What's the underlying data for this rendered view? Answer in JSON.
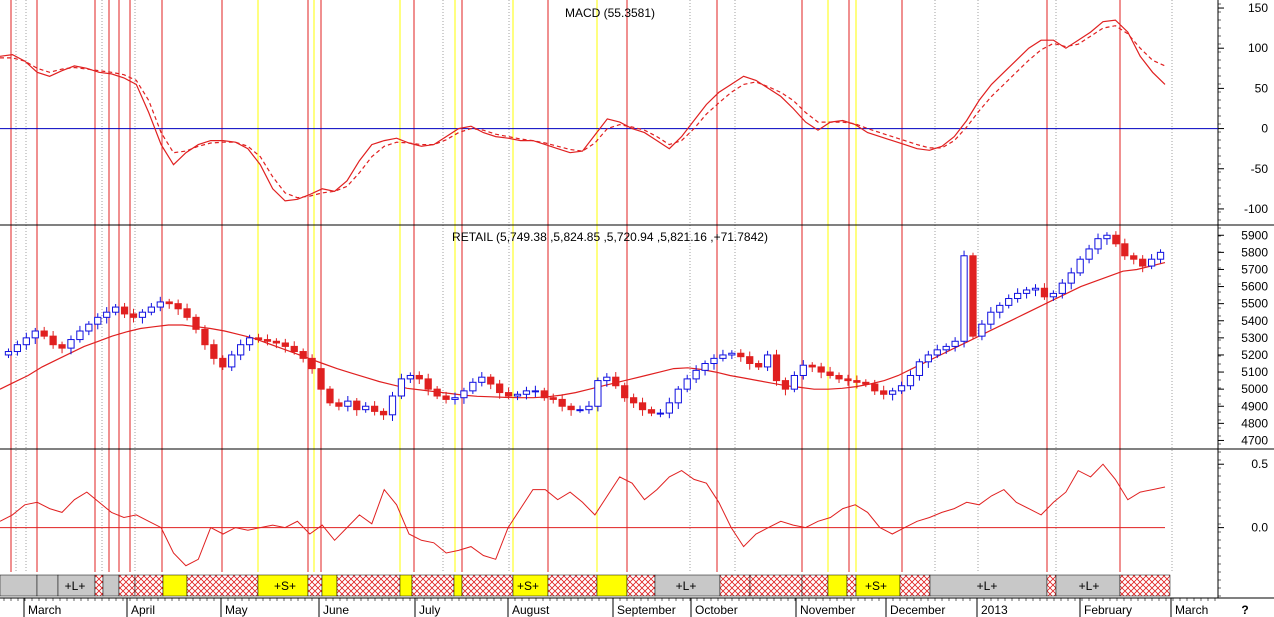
{
  "chart_data": {
    "type": "line",
    "panels": [
      {
        "id": "macd",
        "title": "MACD (55.3581)",
        "yticks": [
          150,
          100,
          50,
          0,
          -50,
          -100
        ],
        "ylim": [
          -120,
          160
        ],
        "zero_line": 0,
        "series": [
          {
            "style": "solid",
            "color": "#e02020",
            "values": [
              90,
              92,
              84,
              70,
              65,
              72,
              78,
              75,
              70,
              68,
              63,
              55,
              20,
              -20,
              -45,
              -30,
              -20,
              -15,
              -15,
              -17,
              -25,
              -45,
              -75,
              -90,
              -88,
              -82,
              -75,
              -78,
              -65,
              -40,
              -20,
              -15,
              -12,
              -18,
              -22,
              -20,
              -10,
              0,
              3,
              -5,
              -10,
              -12,
              -15,
              -15,
              -20,
              -25,
              -30,
              -28,
              -8,
              12,
              8,
              0,
              -5,
              -15,
              -25,
              -10,
              10,
              30,
              45,
              55,
              65,
              60,
              50,
              40,
              25,
              8,
              -2,
              8,
              10,
              5,
              -5,
              -10,
              -15,
              -20,
              -25,
              -27,
              -22,
              -10,
              10,
              35,
              55,
              70,
              85,
              100,
              110,
              110,
              100,
              110,
              120,
              133,
              135,
              120,
              90,
              70,
              55
            ]
          },
          {
            "style": "dashed",
            "color": "#e02020",
            "values": [
              88,
              88,
              84,
              75,
              70,
              74,
              76,
              74,
              72,
              70,
              67,
              60,
              35,
              -5,
              -30,
              -28,
              -22,
              -18,
              -17,
              -17,
              -22,
              -35,
              -60,
              -80,
              -86,
              -84,
              -80,
              -78,
              -72,
              -55,
              -35,
              -22,
              -17,
              -18,
              -20,
              -20,
              -14,
              -5,
              0,
              -2,
              -7,
              -10,
              -13,
              -15,
              -18,
              -22,
              -26,
              -28,
              -18,
              0,
              5,
              2,
              -2,
              -10,
              -20,
              -15,
              0,
              18,
              32,
              45,
              55,
              58,
              52,
              45,
              35,
              20,
              8,
              8,
              8,
              6,
              0,
              -5,
              -10,
              -15,
              -20,
              -24,
              -24,
              -15,
              2,
              22,
              40,
              55,
              70,
              85,
              98,
              106,
              102,
              105,
              115,
              125,
              128,
              118,
              100,
              85,
              78
            ]
          }
        ]
      },
      {
        "id": "retail",
        "title": "RETAIL (5,749.38 ,5,824.85 ,5,720.94 ,5,821.16 ,+71.7842)",
        "yticks": [
          5900,
          5800,
          5700,
          5600,
          5500,
          5400,
          5300,
          5200,
          5100,
          5000,
          4900,
          4800,
          4700
        ],
        "ylim": [
          4650,
          5960
        ],
        "close": [
          5220,
          5260,
          5300,
          5340,
          5310,
          5260,
          5240,
          5290,
          5340,
          5380,
          5420,
          5450,
          5480,
          5440,
          5420,
          5450,
          5480,
          5510,
          5500,
          5470,
          5420,
          5350,
          5260,
          5180,
          5130,
          5200,
          5260,
          5300,
          5290,
          5280,
          5270,
          5250,
          5220,
          5180,
          5120,
          5000,
          4920,
          4900,
          4930,
          4880,
          4900,
          4870,
          4850,
          4960,
          5060,
          5080,
          5060,
          5000,
          4960,
          4940,
          4950,
          4990,
          5040,
          5070,
          5030,
          4980,
          4960,
          4970,
          4990,
          4990,
          4950,
          4940,
          4900,
          4880,
          4880,
          4900,
          5050,
          5070,
          5020,
          4950,
          4920,
          4880,
          4860,
          4860,
          4920,
          5000,
          5060,
          5110,
          5150,
          5180,
          5200,
          5210,
          5190,
          5150,
          5130,
          5200,
          5050,
          5000,
          5080,
          5140,
          5130,
          5100,
          5080,
          5060,
          5050,
          5040,
          5030,
          4990,
          4970,
          4990,
          5020,
          5080,
          5160,
          5200,
          5230,
          5250,
          5280,
          5780,
          5310,
          5380,
          5450,
          5490,
          5530,
          5560,
          5580,
          5590,
          5540,
          5560,
          5620,
          5680,
          5760,
          5820,
          5880,
          5900,
          5850,
          5780,
          5760,
          5720,
          5760,
          5800
        ],
        "ma": [
          5000,
          5040,
          5080,
          5130,
          5170,
          5210,
          5250,
          5280,
          5310,
          5335,
          5355,
          5365,
          5375,
          5375,
          5365,
          5355,
          5340,
          5320,
          5300,
          5270,
          5240,
          5210,
          5180,
          5150,
          5120,
          5095,
          5070,
          5045,
          5025,
          5005,
          4995,
          4985,
          4975,
          4965,
          4958,
          4955,
          4952,
          4950,
          4950,
          4955,
          4965,
          4980,
          5000,
          5020,
          5040,
          5060,
          5080,
          5100,
          5120,
          5125,
          5115,
          5100,
          5080,
          5065,
          5050,
          5035,
          5020,
          5010,
          5000,
          5000,
          5005,
          5015,
          5030,
          5050,
          5080,
          5120,
          5160,
          5200,
          5240,
          5280,
          5320,
          5360,
          5400,
          5440,
          5480,
          5520,
          5560,
          5600,
          5630,
          5660,
          5690,
          5700,
          5720,
          5740
        ]
      },
      {
        "id": "oscillator",
        "yticks": [
          0.5,
          0.0
        ],
        "ylim": [
          -0.35,
          0.62
        ],
        "zero_line": 0.0,
        "values": [
          0.05,
          0.1,
          0.18,
          0.2,
          0.15,
          0.12,
          0.22,
          0.28,
          0.2,
          0.12,
          0.08,
          0.1,
          0.05,
          0.0,
          -0.2,
          -0.3,
          -0.25,
          0.0,
          -0.05,
          0.0,
          -0.02,
          0.0,
          0.02,
          0.0,
          0.05,
          -0.05,
          0.02,
          -0.1,
          0.0,
          0.1,
          0.03,
          0.3,
          0.18,
          -0.05,
          -0.1,
          -0.12,
          -0.2,
          -0.18,
          -0.15,
          -0.22,
          -0.25,
          0.0,
          0.15,
          0.3,
          0.3,
          0.22,
          0.28,
          0.2,
          0.1,
          0.25,
          0.4,
          0.35,
          0.22,
          0.3,
          0.4,
          0.45,
          0.38,
          0.35,
          0.2,
          0.0,
          -0.15,
          -0.05,
          0.0,
          0.05,
          0.02,
          0.0,
          0.05,
          0.08,
          0.15,
          0.18,
          0.12,
          0.0,
          -0.05,
          0.0,
          0.05,
          0.08,
          0.12,
          0.15,
          0.2,
          0.18,
          0.25,
          0.3,
          0.2,
          0.15,
          0.1,
          0.2,
          0.28,
          0.45,
          0.4,
          0.5,
          0.38,
          0.22,
          0.28,
          0.3,
          0.32
        ]
      }
    ],
    "x_axis": {
      "labels": [
        "March",
        "April",
        "May",
        "June",
        "July",
        "August",
        "September",
        "October",
        "November",
        "December",
        "2013",
        "February",
        "March"
      ],
      "extra": "?"
    },
    "signal_band": {
      "labels": [
        "+L+",
        "+S+",
        "+S+",
        "+L+",
        "+S+",
        "+L+",
        "+L+"
      ],
      "colors": {
        "long": "#c8c8c8",
        "short": "#ffff00",
        "neutral_hatch": "#e02020"
      }
    },
    "vertical_markers": {
      "red_color": "#e02020",
      "yellow_color": "#ffff00",
      "gray_color": "#a0a0a0"
    },
    "colors": {
      "up": "#1010e0",
      "down": "#e02020",
      "ma": "#e02020",
      "zero": "#0000c0"
    }
  }
}
